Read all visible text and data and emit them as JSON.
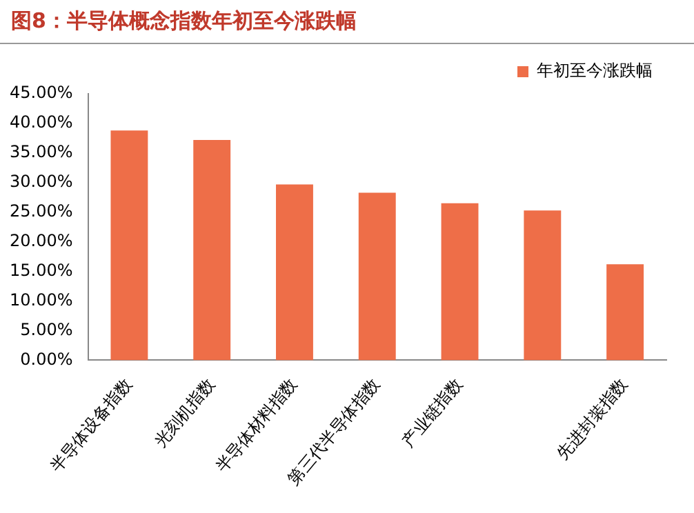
{
  "chart_data": {
    "type": "bar",
    "title": "图8：半导体概念指数年初至今涨跌幅",
    "categories": [
      "半导体设备指数",
      "光刻机指数",
      "半导体材料指数",
      "第三代半导体指数",
      "产业链指数",
      null,
      "先进封装指数"
    ],
    "series": [
      {
        "name": "年初至今涨跌幅",
        "color": "#ee6e48",
        "values": [
          38.8,
          37.2,
          29.7,
          28.3,
          26.5,
          25.3,
          16.2
        ]
      }
    ],
    "ylim": [
      0,
      45
    ],
    "yticks": [
      {
        "value": 0,
        "label": "0.00%"
      },
      {
        "value": 5,
        "label": "5.00%"
      },
      {
        "value": 10,
        "label": "10.00%"
      },
      {
        "value": 15,
        "label": "15.00%"
      },
      {
        "value": 20,
        "label": "20.00%"
      },
      {
        "value": 25,
        "label": "25.00%"
      },
      {
        "value": 30,
        "label": "30.00%"
      },
      {
        "value": 35,
        "label": "35.00%"
      },
      {
        "value": 40,
        "label": "40.00%"
      },
      {
        "value": 45,
        "label": "45.00%"
      }
    ],
    "grid": false,
    "legend": "top right"
  }
}
